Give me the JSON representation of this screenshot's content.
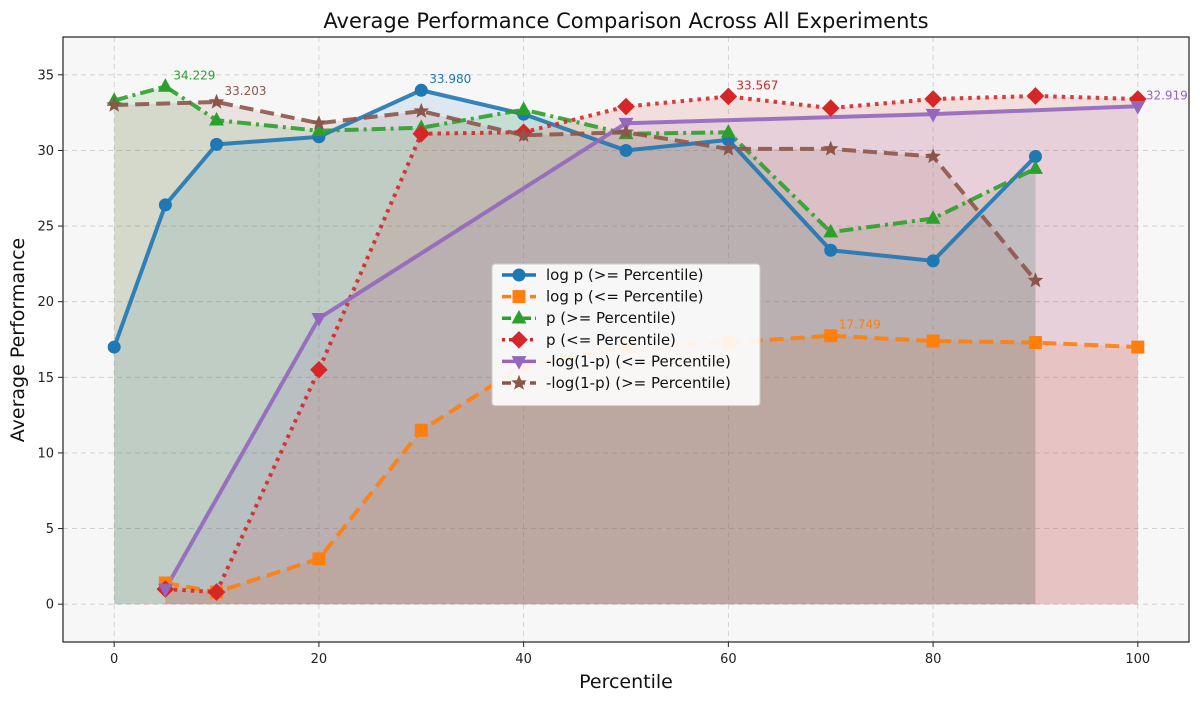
{
  "chart_data": {
    "type": "line",
    "title": "Average Performance Comparison Across All Experiments",
    "xlabel": "Percentile",
    "ylabel": "Average Performance",
    "xlim": [
      -5,
      105
    ],
    "ylim": [
      -2.5,
      37.5
    ],
    "xticks": [
      0,
      20,
      40,
      60,
      80,
      100
    ],
    "yticks": [
      0,
      5,
      10,
      15,
      20,
      25,
      30,
      35
    ],
    "grid": true,
    "legend_position": "center",
    "series": [
      {
        "name": "log p (>= Percentile)",
        "color": "#1f77b4",
        "marker": "circle",
        "dash": "solid",
        "x": [
          0,
          5,
          10,
          20,
          30,
          40,
          50,
          60,
          70,
          80,
          90
        ],
        "values": [
          17.0,
          26.4,
          30.4,
          30.9,
          33.98,
          32.4,
          30.0,
          30.7,
          23.4,
          22.7,
          29.6
        ],
        "annotation": {
          "x": 30,
          "y": 33.98,
          "text": "33.980"
        }
      },
      {
        "name": "log p (<= Percentile)",
        "color": "#ff7f0e",
        "marker": "square",
        "dash": "dashed",
        "x": [
          5,
          10,
          20,
          30,
          40,
          50,
          60,
          70,
          80,
          90,
          100
        ],
        "values": [
          1.4,
          0.8,
          3.0,
          11.5,
          15.8,
          17.0,
          17.3,
          17.749,
          17.4,
          17.3,
          17.0
        ],
        "annotation": {
          "x": 70,
          "y": 17.749,
          "text": "17.749"
        }
      },
      {
        "name": "p (>= Percentile)",
        "color": "#2ca02c",
        "marker": "triangle-up",
        "dash": "dashdot",
        "x": [
          0,
          5,
          10,
          20,
          30,
          40,
          50,
          60,
          70,
          80,
          90
        ],
        "values": [
          33.3,
          34.229,
          32.0,
          31.3,
          31.5,
          32.7,
          31.1,
          31.2,
          24.6,
          25.5,
          28.8
        ],
        "annotation": {
          "x": 5,
          "y": 34.229,
          "text": "34.229"
        }
      },
      {
        "name": "p (<= Percentile)",
        "color": "#d62728",
        "marker": "diamond",
        "dash": "dotted",
        "x": [
          5,
          10,
          20,
          30,
          40,
          50,
          60,
          70,
          80,
          90,
          100
        ],
        "values": [
          1.0,
          0.8,
          15.5,
          31.1,
          31.2,
          32.9,
          33.567,
          32.8,
          33.4,
          33.6,
          33.4
        ],
        "annotation": {
          "x": 60,
          "y": 33.567,
          "text": "33.567"
        }
      },
      {
        "name": "-log(1-p) (<= Percentile)",
        "color": "#9467bd",
        "marker": "triangle-down",
        "dash": "solid",
        "x": [
          5,
          20,
          50,
          80,
          100
        ],
        "values": [
          1.0,
          18.9,
          31.8,
          32.4,
          32.919
        ],
        "annotation": {
          "x": 100,
          "y": 32.919,
          "text": "32.919"
        }
      },
      {
        "name": "-log(1-p) (>= Percentile)",
        "color": "#8c564b",
        "marker": "star",
        "dash": "dashed",
        "x": [
          0,
          10,
          20,
          30,
          40,
          50,
          60,
          70,
          80,
          90
        ],
        "values": [
          33.0,
          33.203,
          31.8,
          32.6,
          31.0,
          31.2,
          30.1,
          30.1,
          29.6,
          21.4
        ],
        "annotation": {
          "x": 10,
          "y": 33.203,
          "text": "33.203"
        }
      }
    ]
  }
}
